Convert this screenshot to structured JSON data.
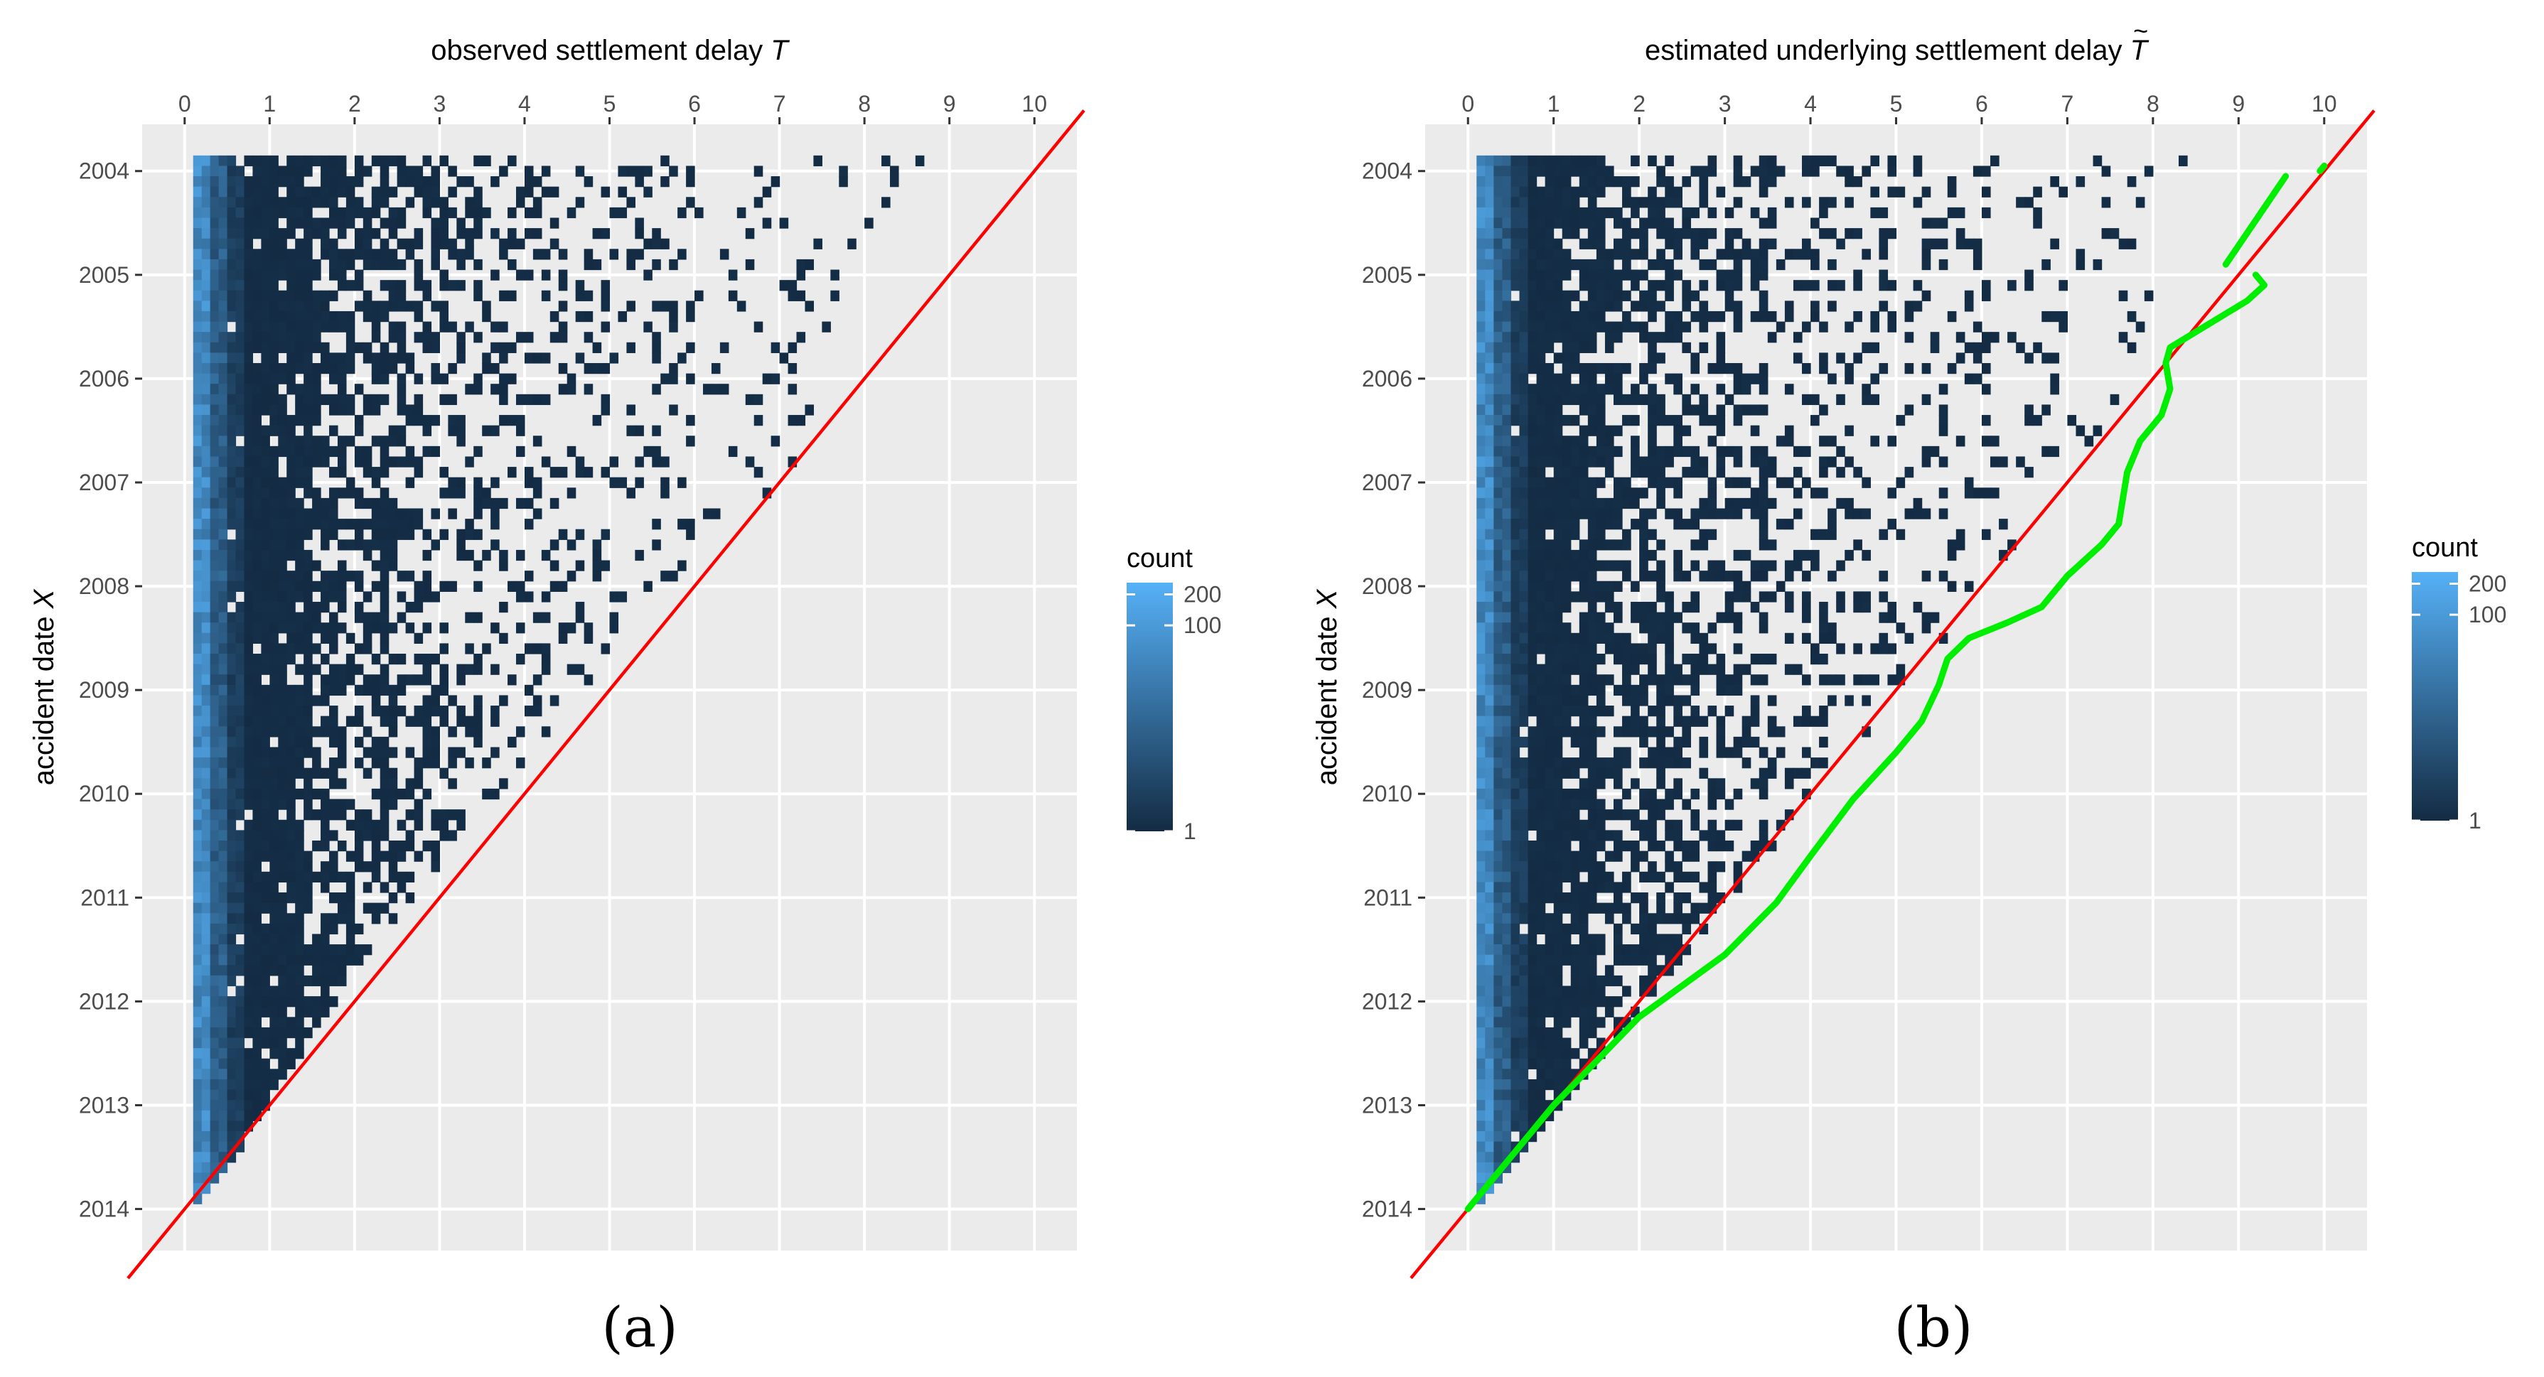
{
  "figure": {
    "caption_a": "(a)",
    "caption_b": "(b)"
  },
  "chart_data": [
    {
      "type": "heatmap",
      "panel_label": "(a)",
      "title": "observed settlement delay",
      "title_var": "T",
      "title_var_decor": "",
      "xlabel_position": "top",
      "ylabel": "accident date",
      "ylabel_var": "X",
      "xlim": [
        -0.5,
        10.5
      ],
      "ylim": [
        2014.4,
        2003.55
      ],
      "x_ticks": [
        0,
        1,
        2,
        3,
        4,
        5,
        6,
        7,
        8,
        9,
        10
      ],
      "y_ticks": [
        2004,
        2005,
        2006,
        2007,
        2008,
        2009,
        2010,
        2011,
        2012,
        2013,
        2014
      ],
      "grid": true,
      "legend": {
        "title": "count",
        "labels": [
          "200",
          "100",
          "1"
        ],
        "values": [
          200,
          100,
          1
        ],
        "scale": "log",
        "color_low": "#132B43",
        "color_high": "#56B1F7",
        "placement": "right"
      },
      "cells": {
        "x_range": [
          0.1,
          8.6
        ],
        "y_range": [
          2003.9,
          2014.0
        ],
        "cell_width_years": 0.1,
        "density_front_by_year": [
          [
            2003.9,
            8.6
          ],
          [
            2005.0,
            7.9
          ],
          [
            2006.0,
            7.5
          ],
          [
            2007.0,
            7.0
          ],
          [
            2008.0,
            5.6
          ],
          [
            2009.0,
            4.6
          ],
          [
            2010.0,
            3.6
          ],
          [
            2011.0,
            2.6
          ],
          [
            2012.0,
            1.7
          ],
          [
            2013.0,
            0.9
          ],
          [
            2014.0,
            0.15
          ]
        ],
        "seed": 7
      },
      "reference_line": {
        "color": "#ff0000",
        "from": [
          -0.5,
          2014.5
        ],
        "to": [
          10.5,
          2003.5
        ]
      },
      "estimate_curve": null
    },
    {
      "type": "heatmap",
      "panel_label": "(b)",
      "title": "estimated underlying settlement delay",
      "title_var": "T",
      "title_var_decor": "~",
      "xlabel_position": "top",
      "ylabel": "accident date",
      "ylabel_var": "X",
      "xlim": [
        -0.5,
        10.5
      ],
      "ylim": [
        2014.4,
        2003.55
      ],
      "x_ticks": [
        0,
        1,
        2,
        3,
        4,
        5,
        6,
        7,
        8,
        9,
        10
      ],
      "y_ticks": [
        2004,
        2005,
        2006,
        2007,
        2008,
        2009,
        2010,
        2011,
        2012,
        2013,
        2014
      ],
      "grid": true,
      "legend": {
        "title": "count",
        "labels": [
          "200",
          "100",
          "1"
        ],
        "values": [
          200,
          100,
          1
        ],
        "scale": "log",
        "color_low": "#132B43",
        "color_high": "#56B1F7",
        "placement": "right"
      },
      "cells": {
        "x_range": [
          0.1,
          8.3
        ],
        "y_range": [
          2003.9,
          2014.0
        ],
        "cell_width_years": 0.1,
        "density_front_by_year": [
          [
            2003.9,
            8.3
          ],
          [
            2005.0,
            8.0
          ],
          [
            2006.0,
            7.6
          ],
          [
            2007.0,
            7.3
          ],
          [
            2008.0,
            6.0
          ],
          [
            2009.0,
            5.2
          ],
          [
            2010.0,
            4.2
          ],
          [
            2011.0,
            3.2
          ],
          [
            2012.0,
            2.1
          ],
          [
            2013.0,
            1.1
          ],
          [
            2014.0,
            0.15
          ]
        ],
        "seed": 11
      },
      "reference_line": {
        "color": "#ff0000",
        "from": [
          -0.5,
          2014.5
        ],
        "to": [
          10.5,
          2003.5
        ]
      },
      "estimate_curve": {
        "color": "#00ee00",
        "segments": [
          [
            [
              0.0,
              2014.0
            ],
            [
              1.0,
              2013.0
            ],
            [
              2.0,
              2012.15
            ],
            [
              3.0,
              2011.55
            ],
            [
              3.6,
              2011.05
            ],
            [
              4.0,
              2010.6
            ],
            [
              4.5,
              2010.05
            ],
            [
              5.0,
              2009.6
            ],
            [
              5.3,
              2009.3
            ],
            [
              5.5,
              2008.95
            ],
            [
              5.6,
              2008.7
            ],
            [
              5.85,
              2008.5
            ],
            [
              6.3,
              2008.35
            ],
            [
              6.7,
              2008.2
            ],
            [
              7.0,
              2007.9
            ],
            [
              7.4,
              2007.6
            ],
            [
              7.6,
              2007.4
            ],
            [
              7.65,
              2007.15
            ],
            [
              7.7,
              2006.9
            ],
            [
              7.85,
              2006.6
            ],
            [
              8.1,
              2006.35
            ],
            [
              8.2,
              2006.1
            ],
            [
              8.15,
              2005.85
            ],
            [
              8.2,
              2005.7
            ],
            [
              8.6,
              2005.5
            ],
            [
              9.1,
              2005.25
            ],
            [
              9.3,
              2005.1
            ],
            [
              9.2,
              2005.0
            ]
          ],
          [
            [
              8.85,
              2004.9
            ],
            [
              9.55,
              2004.05
            ]
          ],
          [
            [
              9.95,
              2004.0
            ],
            [
              10.0,
              2003.95
            ]
          ]
        ]
      }
    }
  ]
}
